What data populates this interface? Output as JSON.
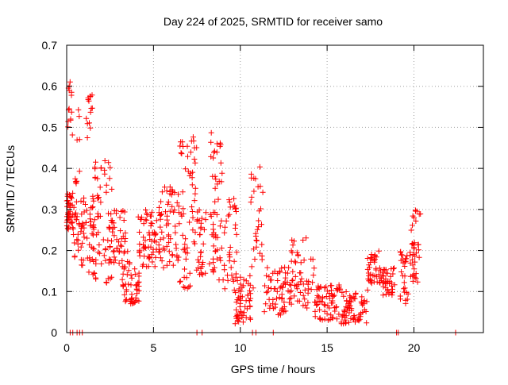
{
  "chart_data": {
    "type": "scatter",
    "title": "Day 224 of 2025, SRMTID for receiver samo",
    "xlabel": "GPS time / hours",
    "ylabel": "SRMTID / TECUs",
    "xlim": [
      0,
      24
    ],
    "ylim": [
      0,
      0.7
    ],
    "xticks": [
      0,
      5,
      10,
      15,
      20
    ],
    "yticks": [
      0,
      0.1,
      0.2,
      0.3,
      0.4,
      0.5,
      0.6,
      0.7
    ],
    "xtick_labels": [
      "0",
      "5",
      "10",
      "15",
      "20"
    ],
    "ytick_labels": [
      "0",
      "0.1",
      "0.2",
      "0.3",
      "0.4",
      "0.5",
      "0.6",
      "0.7"
    ],
    "grid": true,
    "marker": "+",
    "series_color": "#ff0000",
    "zero_x": [
      0.2,
      0.35,
      0.6,
      0.75,
      0.9,
      7.5,
      7.8,
      10.7,
      10.9,
      11.9,
      19.0,
      19.1,
      22.4
    ],
    "point_groups": [
      {
        "x_range": [
          0.0,
          0.35
        ],
        "y_range": [
          0.25,
          0.34
        ],
        "count": 40
      },
      {
        "x_range": [
          0.05,
          0.35
        ],
        "y_range": [
          0.48,
          0.62
        ],
        "count": 14
      },
      {
        "x_range": [
          0.35,
          0.8
        ],
        "y_range": [
          0.18,
          0.32
        ],
        "count": 20
      },
      {
        "x_range": [
          0.45,
          0.75
        ],
        "y_range": [
          0.36,
          0.58
        ],
        "count": 10
      },
      {
        "x_range": [
          0.8,
          1.6
        ],
        "y_range": [
          0.14,
          0.34
        ],
        "count": 50
      },
      {
        "x_range": [
          1.1,
          1.5
        ],
        "y_range": [
          0.45,
          0.6
        ],
        "count": 14
      },
      {
        "x_range": [
          1.5,
          2.6
        ],
        "y_range": [
          0.12,
          0.42
        ],
        "count": 60
      },
      {
        "x_range": [
          2.4,
          3.4
        ],
        "y_range": [
          0.16,
          0.3
        ],
        "count": 45
      },
      {
        "x_range": [
          3.2,
          4.2
        ],
        "y_range": [
          0.07,
          0.2
        ],
        "count": 55
      },
      {
        "x_range": [
          4.1,
          5.5
        ],
        "y_range": [
          0.16,
          0.3
        ],
        "count": 70
      },
      {
        "x_range": [
          5.3,
          6.5
        ],
        "y_range": [
          0.14,
          0.36
        ],
        "count": 55
      },
      {
        "x_range": [
          6.5,
          7.5
        ],
        "y_range": [
          0.1,
          0.48
        ],
        "count": 60
      },
      {
        "x_range": [
          7.5,
          8.5
        ],
        "y_range": [
          0.14,
          0.3
        ],
        "count": 45
      },
      {
        "x_range": [
          8.3,
          9.0
        ],
        "y_range": [
          0.35,
          0.5
        ],
        "count": 20
      },
      {
        "x_range": [
          8.5,
          9.8
        ],
        "y_range": [
          0.1,
          0.34
        ],
        "count": 55
      },
      {
        "x_range": [
          9.7,
          10.6
        ],
        "y_range": [
          0.02,
          0.14
        ],
        "count": 55
      },
      {
        "x_range": [
          10.6,
          11.3
        ],
        "y_range": [
          0.1,
          0.41
        ],
        "count": 30
      },
      {
        "x_range": [
          11.3,
          12.8
        ],
        "y_range": [
          0.04,
          0.16
        ],
        "count": 60
      },
      {
        "x_range": [
          12.8,
          14.3
        ],
        "y_range": [
          0.06,
          0.24
        ],
        "count": 60
      },
      {
        "x_range": [
          14.3,
          15.8
        ],
        "y_range": [
          0.03,
          0.12
        ],
        "count": 65
      },
      {
        "x_range": [
          15.8,
          17.3
        ],
        "y_range": [
          0.02,
          0.1
        ],
        "count": 70
      },
      {
        "x_range": [
          17.3,
          18.0
        ],
        "y_range": [
          0.1,
          0.2
        ],
        "count": 35
      },
      {
        "x_range": [
          18.0,
          18.9
        ],
        "y_range": [
          0.09,
          0.16
        ],
        "count": 45
      },
      {
        "x_range": [
          19.2,
          19.8
        ],
        "y_range": [
          0.06,
          0.2
        ],
        "count": 30
      },
      {
        "x_range": [
          19.8,
          20.4
        ],
        "y_range": [
          0.12,
          0.3
        ],
        "count": 35
      }
    ]
  }
}
